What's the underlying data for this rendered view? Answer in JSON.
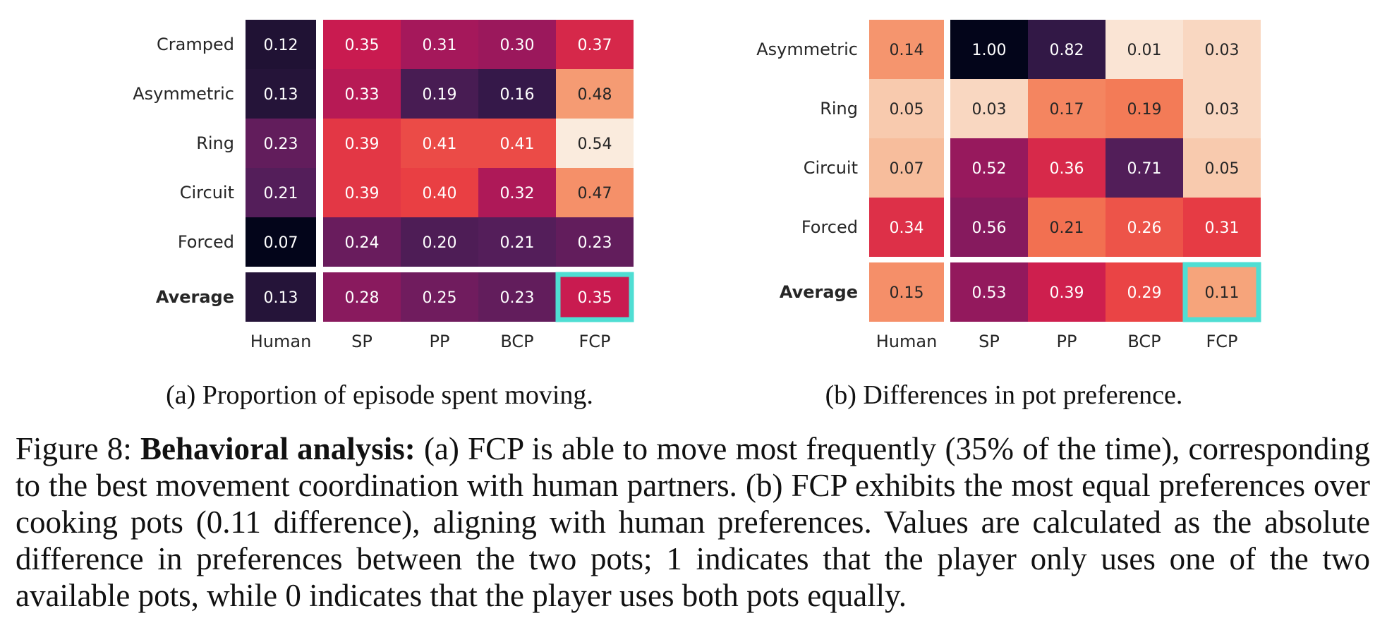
{
  "chart_data": [
    {
      "type": "heatmap",
      "title": "(a) Proportion of episode spent moving.",
      "rows": [
        "Cramped",
        "Asymmetric",
        "Ring",
        "Circuit",
        "Forced"
      ],
      "average_label": "Average",
      "columns": [
        "Human",
        "SP",
        "PP",
        "BCP",
        "FCP"
      ],
      "values": [
        [
          0.12,
          0.35,
          0.31,
          0.3,
          0.37
        ],
        [
          0.13,
          0.33,
          0.19,
          0.16,
          0.48
        ],
        [
          0.23,
          0.39,
          0.41,
          0.41,
          0.54
        ],
        [
          0.21,
          0.39,
          0.4,
          0.32,
          0.47
        ],
        [
          0.07,
          0.24,
          0.2,
          0.21,
          0.23
        ]
      ],
      "average": [
        0.13,
        0.28,
        0.25,
        0.23,
        0.35
      ],
      "highlight": {
        "column": "FCP",
        "row": "Average"
      },
      "colormap": "rocket",
      "vmin": 0.07,
      "vmax": 0.54
    },
    {
      "type": "heatmap",
      "title": "(b) Differences in pot preference.",
      "rows": [
        "Asymmetric",
        "Ring",
        "Circuit",
        "Forced"
      ],
      "average_label": "Average",
      "columns": [
        "Human",
        "SP",
        "PP",
        "BCP",
        "FCP"
      ],
      "values": [
        [
          0.14,
          1.0,
          0.82,
          0.01,
          0.03
        ],
        [
          0.05,
          0.03,
          0.17,
          0.19,
          0.03
        ],
        [
          0.07,
          0.52,
          0.36,
          0.71,
          0.05
        ],
        [
          0.34,
          0.56,
          0.21,
          0.26,
          0.31
        ]
      ],
      "average": [
        0.15,
        0.53,
        0.39,
        0.29,
        0.11
      ],
      "highlight": {
        "column": "FCP",
        "row": "Average"
      },
      "colormap": "rocket_r",
      "vmin": 0.0,
      "vmax": 1.0
    }
  ],
  "caption": {
    "label": "Figure 8: ",
    "bold": "Behavioral analysis:",
    "text": " (a) FCP is able to move most frequently (35% of the time), corresponding to the best movement coordination with human partners.  (b) FCP exhibits the most equal preferences over cooking pots (0.11 difference), aligning with human preferences. Values are calculated as the absolute difference in preferences between the two pots; 1 indicates that the player only uses one of the two available pots, while 0 indicates that the player uses both pots equally."
  },
  "colors": {
    "highlight": "#4fded3",
    "dark_text": "#262626",
    "light_text": "#ffffff"
  }
}
